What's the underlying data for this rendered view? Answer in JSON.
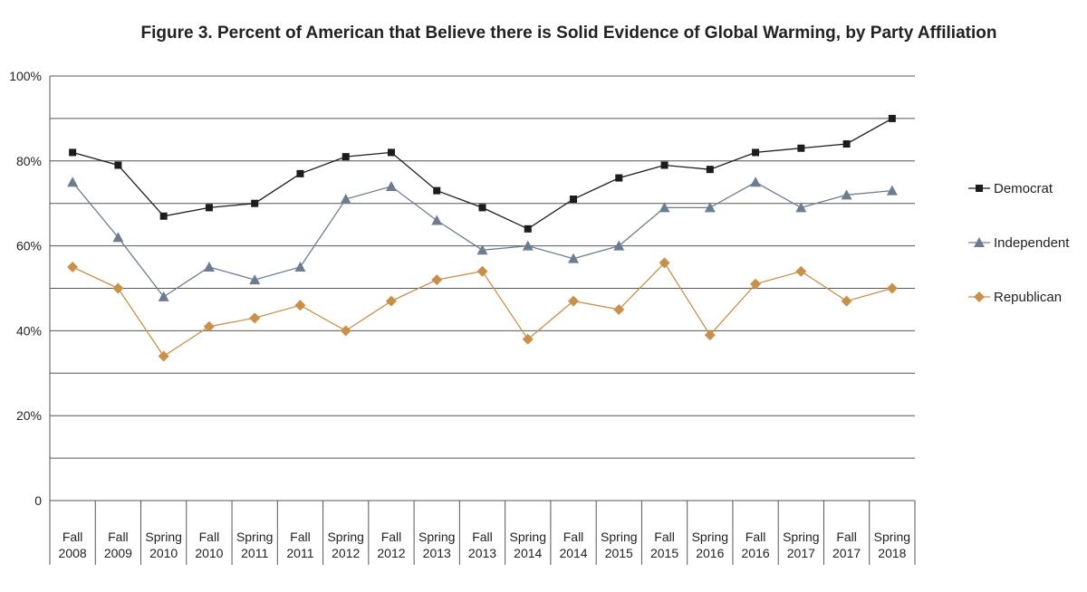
{
  "chart_data": {
    "type": "line",
    "title": "Figure 3. Percent of American that Believe there is Solid Evidence of Global Warming, by Party Affiliation",
    "xlabel": "",
    "ylabel": "",
    "ylim": [
      0,
      100
    ],
    "y_ticks": [
      {
        "value": 0,
        "label": "0"
      },
      {
        "value": 20,
        "label": "20%"
      },
      {
        "value": 40,
        "label": "40%"
      },
      {
        "value": 60,
        "label": "60%"
      },
      {
        "value": 80,
        "label": "80%"
      },
      {
        "value": 100,
        "label": "100%"
      }
    ],
    "grid": true,
    "legend_position": "right",
    "categories": [
      [
        "Fall",
        "2008"
      ],
      [
        "Fall",
        "2009"
      ],
      [
        "Spring",
        "2010"
      ],
      [
        "Fall",
        "2010"
      ],
      [
        "Spring",
        "2011"
      ],
      [
        "Fall",
        "2011"
      ],
      [
        "Spring",
        "2012"
      ],
      [
        "Fall",
        "2012"
      ],
      [
        "Spring",
        "2013"
      ],
      [
        "Fall",
        "2013"
      ],
      [
        "Spring",
        "2014"
      ],
      [
        "Fall",
        "2014"
      ],
      [
        "Spring",
        "2015"
      ],
      [
        "Fall",
        "2015"
      ],
      [
        "Spring",
        "2016"
      ],
      [
        "Fall",
        "2016"
      ],
      [
        "Spring",
        "2017"
      ],
      [
        "Fall",
        "2017"
      ],
      [
        "Spring",
        "2018"
      ]
    ],
    "series": [
      {
        "name": "Democrat",
        "marker": "square",
        "color": "#1c1c1c",
        "values": [
          82,
          79,
          67,
          69,
          70,
          77,
          81,
          82,
          73,
          69,
          64,
          71,
          76,
          79,
          78,
          82,
          83,
          84,
          90
        ]
      },
      {
        "name": "Independent",
        "marker": "triangle",
        "color": "#6d7d91",
        "values": [
          75,
          62,
          48,
          55,
          52,
          55,
          71,
          74,
          66,
          59,
          60,
          57,
          60,
          69,
          69,
          75,
          69,
          72,
          73
        ]
      },
      {
        "name": "Republican",
        "marker": "diamond",
        "color": "#c9904a",
        "values": [
          55,
          50,
          34,
          41,
          43,
          46,
          40,
          47,
          52,
          54,
          38,
          47,
          45,
          56,
          39,
          51,
          54,
          47,
          50
        ]
      }
    ]
  }
}
